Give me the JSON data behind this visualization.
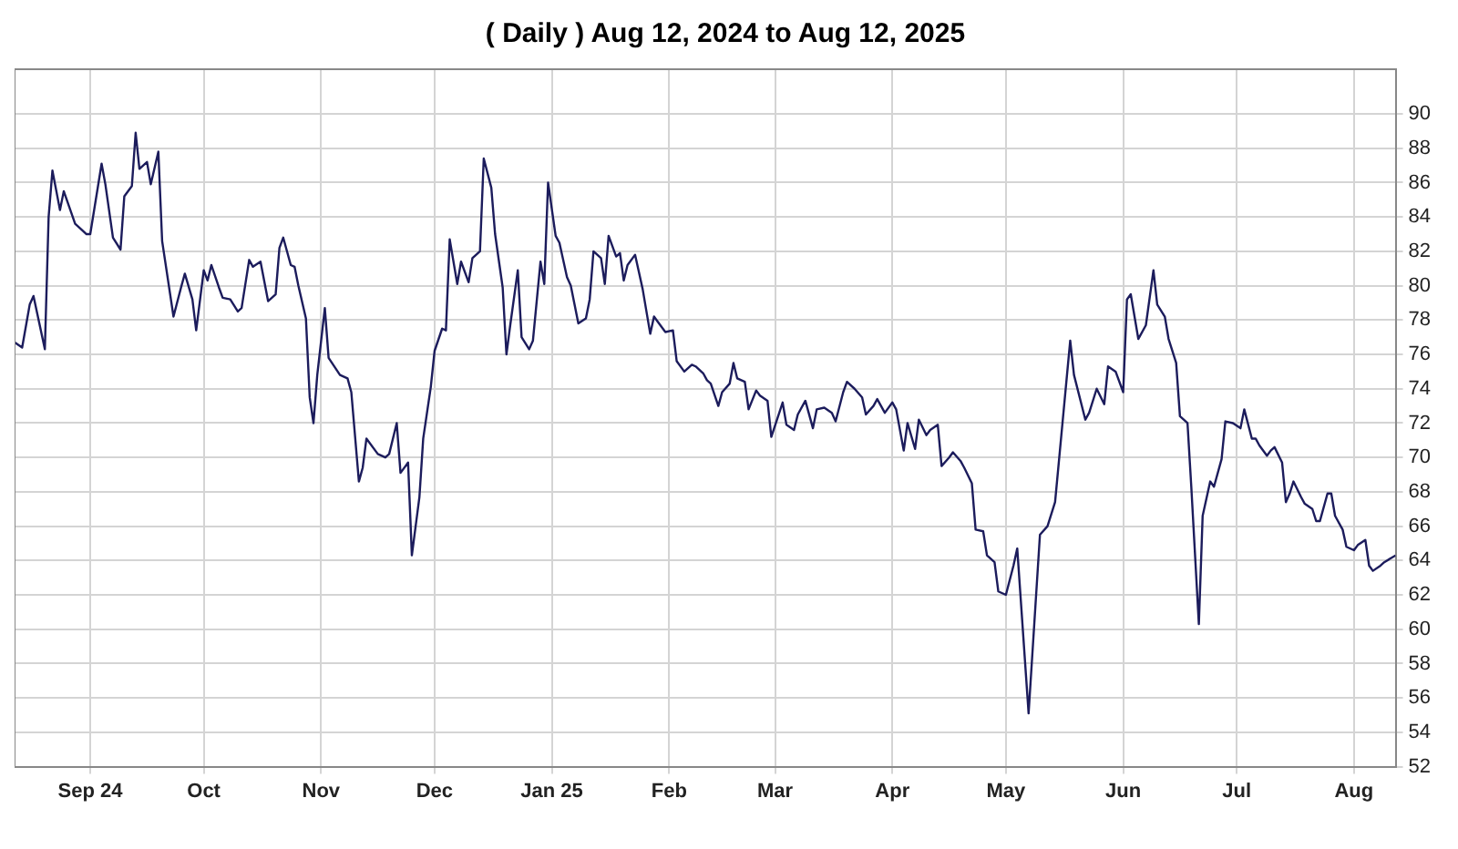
{
  "chart_data": {
    "type": "line",
    "title": "( Daily ) Aug 12, 2024 to Aug 12, 2025",
    "x": [
      "2024-08-12",
      "2024-08-14",
      "2024-08-16",
      "2024-08-17",
      "2024-08-20",
      "2024-08-21",
      "2024-08-22",
      "2024-08-24",
      "2024-08-25",
      "2024-08-28",
      "2024-08-31",
      "2024-09-01",
      "2024-09-04",
      "2024-09-05",
      "2024-09-07",
      "2024-09-09",
      "2024-09-10",
      "2024-09-12",
      "2024-09-13",
      "2024-09-14",
      "2024-09-16",
      "2024-09-17",
      "2024-09-19",
      "2024-09-20",
      "2024-09-23",
      "2024-09-25",
      "2024-09-26",
      "2024-09-28",
      "2024-09-29",
      "2024-10-01",
      "2024-10-02",
      "2024-10-03",
      "2024-10-05",
      "2024-10-06",
      "2024-10-08",
      "2024-10-10",
      "2024-10-11",
      "2024-10-13",
      "2024-10-14",
      "2024-10-16",
      "2024-10-18",
      "2024-10-20",
      "2024-10-21",
      "2024-10-22",
      "2024-10-24",
      "2024-10-25",
      "2024-10-26",
      "2024-10-28",
      "2024-10-29",
      "2024-10-30",
      "2024-10-31",
      "2024-11-02",
      "2024-11-03",
      "2024-11-06",
      "2024-11-08",
      "2024-11-09",
      "2024-11-11",
      "2024-11-12",
      "2024-11-13",
      "2024-11-16",
      "2024-11-18",
      "2024-11-19",
      "2024-11-21",
      "2024-11-22",
      "2024-11-24",
      "2024-11-25",
      "2024-11-27",
      "2024-11-28",
      "2024-11-30",
      "2024-12-01",
      "2024-12-03",
      "2024-12-04",
      "2024-12-05",
      "2024-12-07",
      "2024-12-08",
      "2024-12-10",
      "2024-12-11",
      "2024-12-13",
      "2024-12-14",
      "2024-12-16",
      "2024-12-17",
      "2024-12-19",
      "2024-12-20",
      "2024-12-21",
      "2024-12-23",
      "2024-12-24",
      "2024-12-26",
      "2024-12-27",
      "2024-12-29",
      "2024-12-30",
      "2024-12-31",
      "2025-01-02",
      "2025-01-03",
      "2025-01-05",
      "2025-01-06",
      "2025-01-07",
      "2025-01-08",
      "2025-01-10",
      "2025-01-11",
      "2025-01-12",
      "2025-01-14",
      "2025-01-15",
      "2025-01-16",
      "2025-01-18",
      "2025-01-19",
      "2025-01-20",
      "2025-01-21",
      "2025-01-23",
      "2025-01-24",
      "2025-01-25",
      "2025-01-27",
      "2025-01-28",
      "2025-01-29",
      "2025-01-31",
      "2025-02-02",
      "2025-02-03",
      "2025-02-05",
      "2025-02-07",
      "2025-02-08",
      "2025-02-10",
      "2025-02-11",
      "2025-02-12",
      "2025-02-14",
      "2025-02-15",
      "2025-02-17",
      "2025-02-18",
      "2025-02-19",
      "2025-02-21",
      "2025-02-22",
      "2025-02-24",
      "2025-02-25",
      "2025-02-27",
      "2025-02-28",
      "2025-03-03",
      "2025-03-04",
      "2025-03-06",
      "2025-03-07",
      "2025-03-09",
      "2025-03-11",
      "2025-03-12",
      "2025-03-14",
      "2025-03-16",
      "2025-03-17",
      "2025-03-19",
      "2025-03-20",
      "2025-03-22",
      "2025-03-24",
      "2025-03-25",
      "2025-03-27",
      "2025-03-28",
      "2025-03-30",
      "2025-04-01",
      "2025-04-02",
      "2025-04-04",
      "2025-04-05",
      "2025-04-07",
      "2025-04-08",
      "2025-04-10",
      "2025-04-11",
      "2025-04-13",
      "2025-04-14",
      "2025-04-16",
      "2025-04-17",
      "2025-04-19",
      "2025-04-20",
      "2025-04-22",
      "2025-04-23",
      "2025-04-25",
      "2025-04-26",
      "2025-04-28",
      "2025-04-29",
      "2025-05-01",
      "2025-05-03",
      "2025-05-04",
      "2025-05-07",
      "2025-05-10",
      "2025-05-12",
      "2025-05-14",
      "2025-05-18",
      "2025-05-19",
      "2025-05-22",
      "2025-05-23",
      "2025-05-25",
      "2025-05-27",
      "2025-05-28",
      "2025-05-30",
      "2025-06-01",
      "2025-06-02",
      "2025-06-03",
      "2025-06-05",
      "2025-06-07",
      "2025-06-09",
      "2025-06-10",
      "2025-06-12",
      "2025-06-13",
      "2025-06-15",
      "2025-06-16",
      "2025-06-18",
      "2025-06-19",
      "2025-06-21",
      "2025-06-22",
      "2025-06-24",
      "2025-06-25",
      "2025-06-27",
      "2025-06-28",
      "2025-06-30",
      "2025-07-02",
      "2025-07-03",
      "2025-07-05",
      "2025-07-06",
      "2025-07-07",
      "2025-07-09",
      "2025-07-10",
      "2025-07-11",
      "2025-07-13",
      "2025-07-14",
      "2025-07-15",
      "2025-07-16",
      "2025-07-18",
      "2025-07-19",
      "2025-07-21",
      "2025-07-22",
      "2025-07-23",
      "2025-07-25",
      "2025-07-26",
      "2025-07-27",
      "2025-07-29",
      "2025-07-30",
      "2025-08-01",
      "2025-08-02",
      "2025-08-04",
      "2025-08-05",
      "2025-08-06",
      "2025-08-08",
      "2025-08-09",
      "2025-08-12"
    ],
    "series": [
      {
        "color": "#1c1c5c",
        "values": [
          76.7,
          76.4,
          78.9,
          79.4,
          76.3,
          84.0,
          86.7,
          84.4,
          85.5,
          83.6,
          83.0,
          83.0,
          87.1,
          85.9,
          82.8,
          82.1,
          85.2,
          85.8,
          88.9,
          86.8,
          87.2,
          85.9,
          87.8,
          82.6,
          78.2,
          79.9,
          80.7,
          79.2,
          77.4,
          80.9,
          80.3,
          81.2,
          79.9,
          79.3,
          79.2,
          78.5,
          78.7,
          81.5,
          81.1,
          81.4,
          79.1,
          79.5,
          82.2,
          82.8,
          81.2,
          81.1,
          80.0,
          78.1,
          73.5,
          72.0,
          74.8,
          78.7,
          75.8,
          74.8,
          74.6,
          73.8,
          68.6,
          69.4,
          71.1,
          70.2,
          70.0,
          70.2,
          72.0,
          69.1,
          69.7,
          64.3,
          67.7,
          71.1,
          74.1,
          76.2,
          77.5,
          77.4,
          82.7,
          80.1,
          81.4,
          80.2,
          81.6,
          82.0,
          87.4,
          85.7,
          83.0,
          79.9,
          76.0,
          77.7,
          80.9,
          77.0,
          76.3,
          76.8,
          81.4,
          80.1,
          86.0,
          82.9,
          82.5,
          80.5,
          80.0,
          78.9,
          77.8,
          78.1,
          79.2,
          82.0,
          81.6,
          80.1,
          82.9,
          81.7,
          81.9,
          80.3,
          81.2,
          81.8,
          80.8,
          79.8,
          77.2,
          78.2,
          77.9,
          77.3,
          77.4,
          75.6,
          75.0,
          75.4,
          75.3,
          74.9,
          74.5,
          74.3,
          73.0,
          73.8,
          74.3,
          75.5,
          74.6,
          74.4,
          72.8,
          73.9,
          73.6,
          73.3,
          71.2,
          73.2,
          71.9,
          71.6,
          72.5,
          73.3,
          71.7,
          72.8,
          72.9,
          72.6,
          72.1,
          73.8,
          74.4,
          74.0,
          73.5,
          72.5,
          73.0,
          73.4,
          72.6,
          73.2,
          72.8,
          70.4,
          72.0,
          70.5,
          72.2,
          71.3,
          71.6,
          71.9,
          69.5,
          70.0,
          70.3,
          69.8,
          69.4,
          68.5,
          65.8,
          65.7,
          64.3,
          63.9,
          62.2,
          62.0,
          63.7,
          64.7,
          55.1,
          65.5,
          66.0,
          67.4,
          76.8,
          74.8,
          72.2,
          72.6,
          74.0,
          73.1,
          75.3,
          75.0,
          73.8,
          79.2,
          79.5,
          76.9,
          77.7,
          80.9,
          78.9,
          78.2,
          76.9,
          75.5,
          72.4,
          72.0,
          68.3,
          60.3,
          66.6,
          68.6,
          68.3,
          69.9,
          72.1,
          72.0,
          71.7,
          72.8,
          71.1,
          71.1,
          70.7,
          70.1,
          70.4,
          70.6,
          69.7,
          67.4,
          67.9,
          68.6,
          67.7,
          67.3,
          67.0,
          66.3,
          66.3,
          67.9,
          67.9,
          66.6,
          65.8,
          64.8,
          64.6,
          64.9,
          65.2,
          63.7,
          63.4,
          63.7,
          63.9,
          64.3
        ]
      }
    ],
    "xlim": [
      "2024-08-12",
      "2025-08-12"
    ],
    "xticks": [
      {
        "value": "2024-09-01",
        "label": "Sep 24"
      },
      {
        "value": "2024-10-01",
        "label": "Oct"
      },
      {
        "value": "2024-11-01",
        "label": "Nov"
      },
      {
        "value": "2024-12-01",
        "label": "Dec"
      },
      {
        "value": "2025-01-01",
        "label": "Jan 25"
      },
      {
        "value": "2025-02-01",
        "label": "Feb"
      },
      {
        "value": "2025-03-01",
        "label": "Mar"
      },
      {
        "value": "2025-04-01",
        "label": "Apr"
      },
      {
        "value": "2025-05-01",
        "label": "May"
      },
      {
        "value": "2025-06-01",
        "label": "Jun"
      },
      {
        "value": "2025-07-01",
        "label": "Jul"
      },
      {
        "value": "2025-08-01",
        "label": "Aug"
      }
    ],
    "ylim": [
      52,
      92.6
    ],
    "yticks": [
      52,
      54,
      56,
      58,
      60,
      62,
      64,
      66,
      68,
      70,
      72,
      74,
      76,
      78,
      80,
      82,
      84,
      86,
      88,
      90
    ],
    "grid": true,
    "line_style": "solid"
  }
}
